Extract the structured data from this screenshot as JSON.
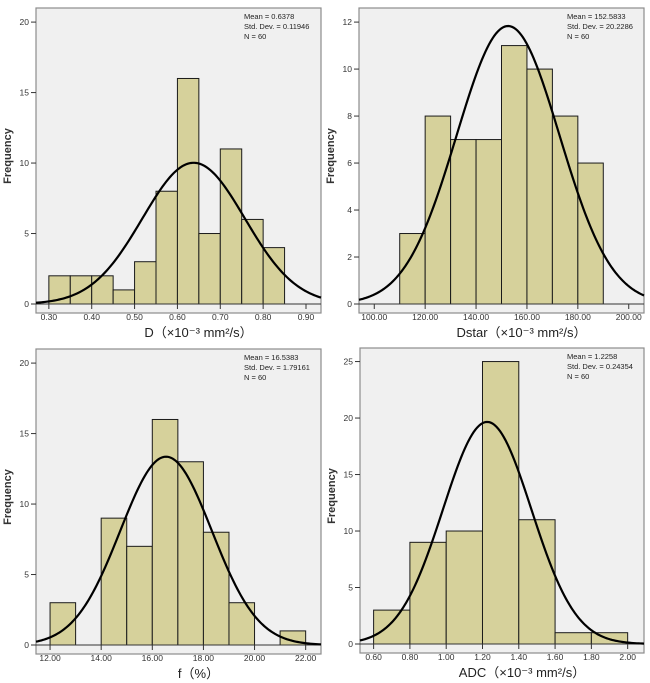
{
  "chart_data": [
    {
      "type": "bar",
      "subtype": "histogram",
      "xlabel": "D（×10⁻³ mm²/s）",
      "ylabel": "Frequency",
      "xlim": [
        0.27,
        0.935
      ],
      "ylim": [
        0,
        21
      ],
      "xticks": [
        "0.30",
        "0.40",
        "0.50",
        "0.60",
        "0.70",
        "0.80",
        "0.90"
      ],
      "xtick_values": [
        0.3,
        0.4,
        0.5,
        0.6,
        0.7,
        0.8,
        0.9
      ],
      "yticks": [
        0,
        5,
        10,
        15,
        20
      ],
      "bins": [
        [
          0.3,
          0.35
        ],
        [
          0.35,
          0.4
        ],
        [
          0.4,
          0.45
        ],
        [
          0.45,
          0.5
        ],
        [
          0.5,
          0.55
        ],
        [
          0.55,
          0.6
        ],
        [
          0.6,
          0.65
        ],
        [
          0.65,
          0.7
        ],
        [
          0.7,
          0.75
        ],
        [
          0.75,
          0.8
        ],
        [
          0.8,
          0.85
        ]
      ],
      "values": [
        2,
        2,
        2,
        1,
        3,
        8,
        16,
        5,
        11,
        6,
        4
      ],
      "binwidth": 0.05,
      "normal_curve": {
        "mean": 0.6378,
        "sd": 0.11946,
        "n": 60
      },
      "stats": [
        "Mean = 0.6378",
        "Std. Dev. = 0.11946",
        "N = 60"
      ]
    },
    {
      "type": "bar",
      "subtype": "histogram",
      "xlabel": "Dstar（×10⁻³ mm²/s）",
      "ylabel": "Frequency",
      "xlim": [
        94,
        206
      ],
      "ylim": [
        0,
        12.6
      ],
      "xticks": [
        "100.00",
        "120.00",
        "140.00",
        "160.00",
        "180.00",
        "200.00"
      ],
      "xtick_values": [
        100,
        120,
        140,
        160,
        180,
        200
      ],
      "yticks": [
        0,
        2,
        4,
        6,
        8,
        10,
        12
      ],
      "bins": [
        [
          110,
          120
        ],
        [
          120,
          130
        ],
        [
          130,
          140
        ],
        [
          140,
          150
        ],
        [
          150,
          160
        ],
        [
          160,
          170
        ],
        [
          170,
          180
        ],
        [
          180,
          190
        ]
      ],
      "values": [
        3,
        8,
        7,
        7,
        11,
        10,
        8,
        6
      ],
      "binwidth": 10,
      "normal_curve": {
        "mean": 152.5833,
        "sd": 20.2286,
        "n": 60
      },
      "stats": [
        "Mean = 152.5833",
        "Std. Dev. = 20.2286",
        "N = 60"
      ]
    },
    {
      "type": "bar",
      "subtype": "histogram",
      "xlabel": "f（%）",
      "ylabel": "Frequency",
      "xlim": [
        11.45,
        22.6
      ],
      "ylim": [
        0,
        21
      ],
      "xticks": [
        "12.00",
        "14.00",
        "16.00",
        "18.00",
        "20.00",
        "22.00"
      ],
      "xtick_values": [
        12,
        14,
        16,
        18,
        20,
        22
      ],
      "yticks": [
        0,
        5,
        10,
        15,
        20
      ],
      "bins": [
        [
          12,
          13
        ],
        [
          13,
          14
        ],
        [
          14,
          15
        ],
        [
          15,
          16
        ],
        [
          16,
          17
        ],
        [
          17,
          18
        ],
        [
          18,
          19
        ],
        [
          19,
          20
        ],
        [
          20,
          21
        ],
        [
          21,
          22
        ]
      ],
      "values": [
        3,
        0,
        9,
        7,
        16,
        13,
        8,
        3,
        0,
        1
      ],
      "binwidth": 1,
      "normal_curve": {
        "mean": 16.5383,
        "sd": 1.79161,
        "n": 60
      },
      "stats": [
        "Mean = 16.5383",
        "Std. Dev. = 1.79161",
        "N = 60"
      ]
    },
    {
      "type": "bar",
      "subtype": "histogram",
      "xlabel": "ADC（×10⁻³ mm²/s）",
      "ylabel": "Frequency",
      "xlim": [
        0.525,
        2.09
      ],
      "ylim": [
        0,
        26.2
      ],
      "xticks": [
        "0.60",
        "0.80",
        "1.00",
        "1.20",
        "1.40",
        "1.60",
        "1.80",
        "2.00"
      ],
      "xtick_values": [
        0.6,
        0.8,
        1.0,
        1.2,
        1.4,
        1.6,
        1.8,
        2.0
      ],
      "yticks": [
        0,
        5,
        10,
        15,
        20,
        25
      ],
      "bins": [
        [
          0.6,
          0.8
        ],
        [
          0.8,
          1.0
        ],
        [
          1.0,
          1.2
        ],
        [
          1.2,
          1.4
        ],
        [
          1.4,
          1.6
        ],
        [
          1.6,
          1.8
        ],
        [
          1.8,
          2.0
        ]
      ],
      "values": [
        3,
        9,
        10,
        25,
        11,
        1,
        1
      ],
      "binwidth": 0.2,
      "normal_curve": {
        "mean": 1.2258,
        "sd": 0.24354,
        "n": 60
      },
      "stats": [
        "Mean = 1.2258",
        "Std. Dev. = 0.24354",
        "N = 60"
      ]
    }
  ],
  "colors": {
    "bar_fill": "#d6d19b",
    "bar_stroke": "#1a1a1a",
    "plot_bg": "#f0f0f0",
    "curve": "#000000"
  }
}
